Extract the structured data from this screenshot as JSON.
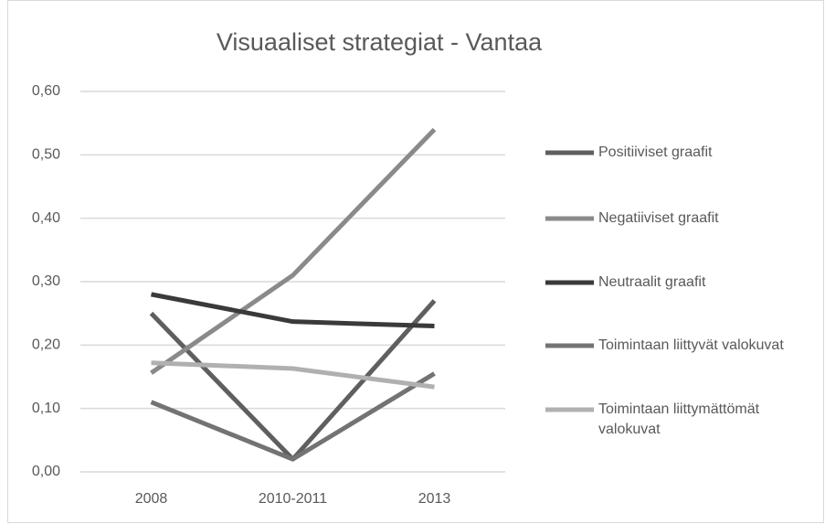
{
  "chart_data": {
    "type": "line",
    "title": "Visuaaliset strategiat - Vantaa",
    "categories": [
      "2008",
      "2010-2011",
      "2013"
    ],
    "series": [
      {
        "name": "Positiiviset graafit",
        "color": "#5f5f5f",
        "values": [
          0.25,
          0.02,
          0.27
        ]
      },
      {
        "name": "Negatiiviset graafit",
        "color": "#8a8a8a",
        "values": [
          0.156,
          0.31,
          0.54
        ]
      },
      {
        "name": "Neutraalit graafit",
        "color": "#3a3a3a",
        "values": [
          0.28,
          0.237,
          0.23
        ]
      },
      {
        "name": "Toimintaan liittyvät valokuvat",
        "color": "#737373",
        "values": [
          0.11,
          0.02,
          0.155
        ]
      },
      {
        "name": "Toimintaan liittymättömät valokuvat",
        "color": "#b0b0b0",
        "values": [
          0.172,
          0.163,
          0.134
        ]
      }
    ],
    "ylim": [
      0,
      0.6
    ],
    "yticks": [
      {
        "value": 0,
        "label": "0,00"
      },
      {
        "value": 0.1,
        "label": "0,10"
      },
      {
        "value": 0.2,
        "label": "0,20"
      },
      {
        "value": 0.3,
        "label": "0,30"
      },
      {
        "value": 0.4,
        "label": "0,40"
      },
      {
        "value": 0.5,
        "label": "0,50"
      },
      {
        "value": 0.6,
        "label": "0,60"
      }
    ],
    "grid": true,
    "legend": "right"
  }
}
